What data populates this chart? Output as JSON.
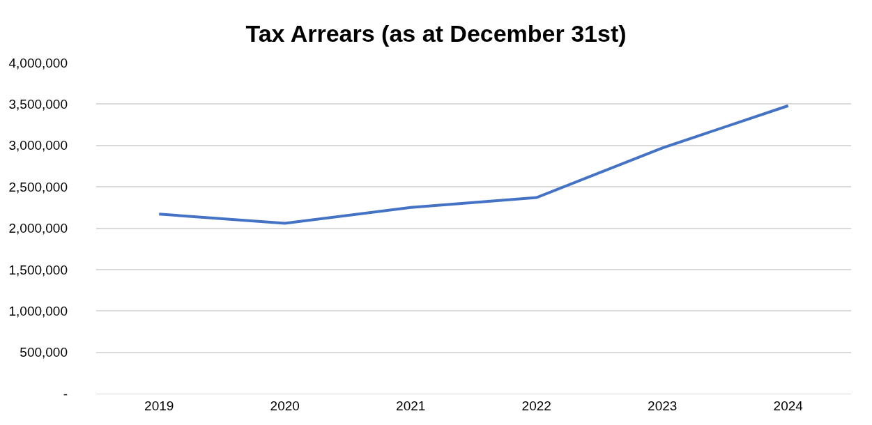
{
  "chart_data": {
    "type": "line",
    "title": "Tax Arrears (as at December 31st)",
    "categories": [
      "2019",
      "2020",
      "2021",
      "2022",
      "2023",
      "2024"
    ],
    "series": [
      {
        "color": "#4472c4",
        "values": [
          2170000,
          2060000,
          2250000,
          2370000,
          2970000,
          3480000
        ]
      }
    ],
    "ylim": [
      0,
      4000000
    ],
    "yticks": [
      {
        "value": 0,
        "label": "-"
      },
      {
        "value": 500000,
        "label": "500,000"
      },
      {
        "value": 1000000,
        "label": "1,000,000"
      },
      {
        "value": 1500000,
        "label": "1,500,000"
      },
      {
        "value": 2000000,
        "label": "2,000,000"
      },
      {
        "value": 2500000,
        "label": "2,500,000"
      },
      {
        "value": 3000000,
        "label": "3,000,000"
      },
      {
        "value": 3500000,
        "label": "3,500,000"
      },
      {
        "value": 4000000,
        "label": "4,000,000"
      }
    ],
    "grid": "y",
    "legend": false
  }
}
